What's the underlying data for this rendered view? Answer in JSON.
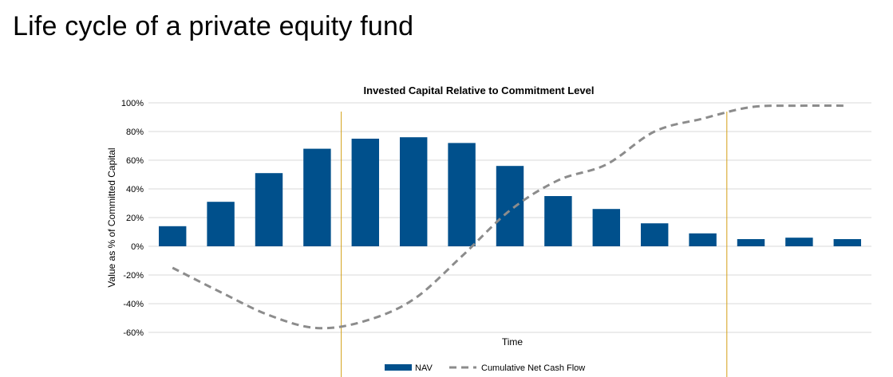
{
  "slide": {
    "title": "Life cycle of a private equity fund"
  },
  "chart_data": {
    "type": "bar",
    "title": "Invested Capital Relative to Commitment Level",
    "xlabel": "Time",
    "ylabel": "Value as % of Committed Capital",
    "ylim": [
      -60,
      100
    ],
    "yticks": [
      100,
      80,
      60,
      40,
      20,
      0,
      -20,
      -40,
      -60
    ],
    "ytick_labels": [
      "100%",
      "80%",
      "60%",
      "40%",
      "20%",
      "0%",
      "-20%",
      "-40%",
      "-60%"
    ],
    "grid": true,
    "legend": "bottom",
    "phase_dividers_after_category": [
      4,
      12
    ],
    "series": [
      {
        "name": "NAV",
        "type": "bar",
        "color": "#00508c",
        "values": [
          14,
          31,
          51,
          68,
          75,
          76,
          72,
          56,
          35,
          26,
          16,
          9,
          5,
          6,
          5
        ]
      },
      {
        "name": "Cumulative Net Cash Flow",
        "type": "line",
        "style": "dashed",
        "color": "#8c8c8c",
        "values": [
          -15,
          -32,
          -48,
          -57,
          -52,
          -37,
          -7,
          25,
          46,
          57,
          80,
          89,
          97,
          98,
          98
        ]
      }
    ],
    "divider_color": "#d4a017"
  }
}
